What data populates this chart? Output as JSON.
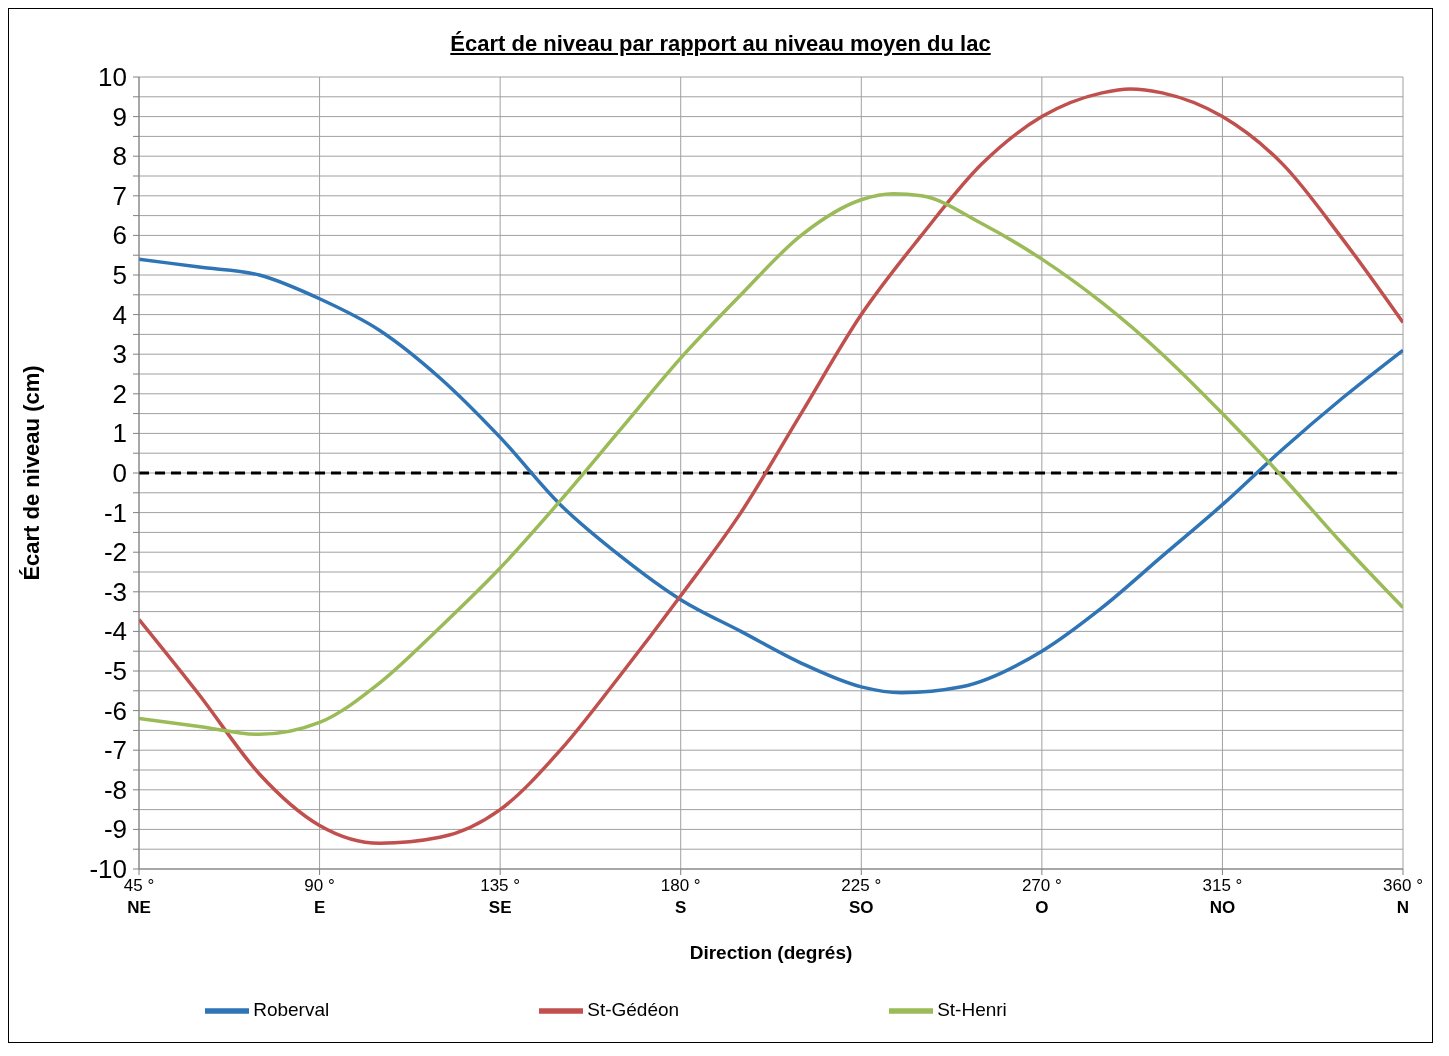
{
  "chart_data": {
    "type": "line",
    "title": "Écart de niveau par rapport au niveau moyen du lac",
    "xlabel": "Direction (degrés)",
    "ylabel": "Écart de niveau  (cm)",
    "xlim": [
      45,
      360
    ],
    "xticks": [
      {
        "value": 45,
        "label": "45 °\nNE"
      },
      {
        "value": 90,
        "label": "90 °\nE"
      },
      {
        "value": 135,
        "label": "135 °\nSE"
      },
      {
        "value": 180,
        "label": "180 °\nS"
      },
      {
        "value": 225,
        "label": "225 °\nSO"
      },
      {
        "value": 270,
        "label": "270 °\nO"
      },
      {
        "value": 315,
        "label": "315 °\nNO"
      },
      {
        "value": 360,
        "label": "360 °\nN"
      }
    ],
    "ylim": [
      -10,
      10
    ],
    "yticks": [
      -10,
      {
        "value": -9.5,
        "label": null
      },
      -9,
      {
        "value": -8.5,
        "label": null
      },
      -8,
      {
        "value": -7.5,
        "label": null
      },
      -7,
      {
        "value": -6.5,
        "label": null
      },
      -6,
      {
        "value": -5.5,
        "label": null
      },
      -5,
      {
        "value": -4.5,
        "label": null
      },
      -4,
      {
        "value": -3.5,
        "label": null
      },
      -3,
      {
        "value": -2.5,
        "label": null
      },
      -2,
      {
        "value": -1.5,
        "label": null
      },
      -1,
      {
        "value": -0.5,
        "label": null
      },
      0,
      {
        "value": 0.5,
        "label": null
      },
      1,
      {
        "value": 1.5,
        "label": null
      },
      2,
      {
        "value": 2.5,
        "label": null
      },
      3,
      {
        "value": 3.5,
        "label": null
      },
      4,
      {
        "value": 4.5,
        "label": null
      },
      5,
      {
        "value": 5.5,
        "label": null
      },
      6,
      {
        "value": 6.5,
        "label": null
      },
      7,
      {
        "value": 7.5,
        "label": null
      },
      8,
      {
        "value": 8.5,
        "label": null
      },
      9,
      {
        "value": 9.5,
        "label": null
      },
      10
    ],
    "grid": true,
    "legend": "bottom",
    "marker": "none",
    "line_style": "solid",
    "ref_lines": [
      {
        "axis": "y",
        "value": 0,
        "color": "#000000",
        "line_style": "dashed"
      }
    ],
    "series": [
      {
        "name": "Roberval",
        "color": "#2f75b5",
        "x": [
          45,
          60,
          75,
          90,
          105,
          120,
          135,
          150,
          165,
          180,
          195,
          210,
          225,
          235,
          250,
          270,
          285,
          300,
          315,
          330,
          345,
          360
        ],
        "values": [
          5.4,
          5.2,
          5.0,
          4.4,
          3.6,
          2.4,
          0.9,
          -0.8,
          -2.1,
          -3.2,
          -4.0,
          -4.8,
          -5.4,
          -5.55,
          -5.4,
          -4.5,
          -3.4,
          -2.1,
          -0.8,
          0.6,
          1.9,
          3.1
        ]
      },
      {
        "name": "St-Gédéon",
        "color": "#c0504d",
        "x": [
          45,
          60,
          75,
          90,
          105,
          120,
          135,
          150,
          165,
          180,
          195,
          210,
          225,
          240,
          255,
          270,
          285,
          292,
          300,
          315,
          330,
          345,
          360
        ],
        "values": [
          -3.7,
          -5.6,
          -7.6,
          -8.9,
          -9.35,
          -9.2,
          -8.5,
          -7.0,
          -5.1,
          -3.1,
          -1.0,
          1.5,
          4.0,
          6.0,
          7.8,
          9.0,
          9.6,
          9.7,
          9.6,
          9.0,
          7.8,
          5.9,
          3.8
        ]
      },
      {
        "name": "St-Henri",
        "color": "#9bbb59",
        "x": [
          45,
          60,
          75,
          90,
          105,
          120,
          135,
          150,
          165,
          180,
          195,
          210,
          225,
          233,
          240,
          255,
          270,
          285,
          300,
          315,
          330,
          345,
          360
        ],
        "values": [
          -6.2,
          -6.4,
          -6.6,
          -6.3,
          -5.3,
          -3.9,
          -2.4,
          -0.7,
          1.1,
          2.9,
          4.5,
          6.0,
          6.9,
          7.05,
          7.0,
          6.3,
          5.4,
          4.3,
          3.0,
          1.5,
          -0.1,
          -1.8,
          -3.4
        ]
      }
    ]
  }
}
